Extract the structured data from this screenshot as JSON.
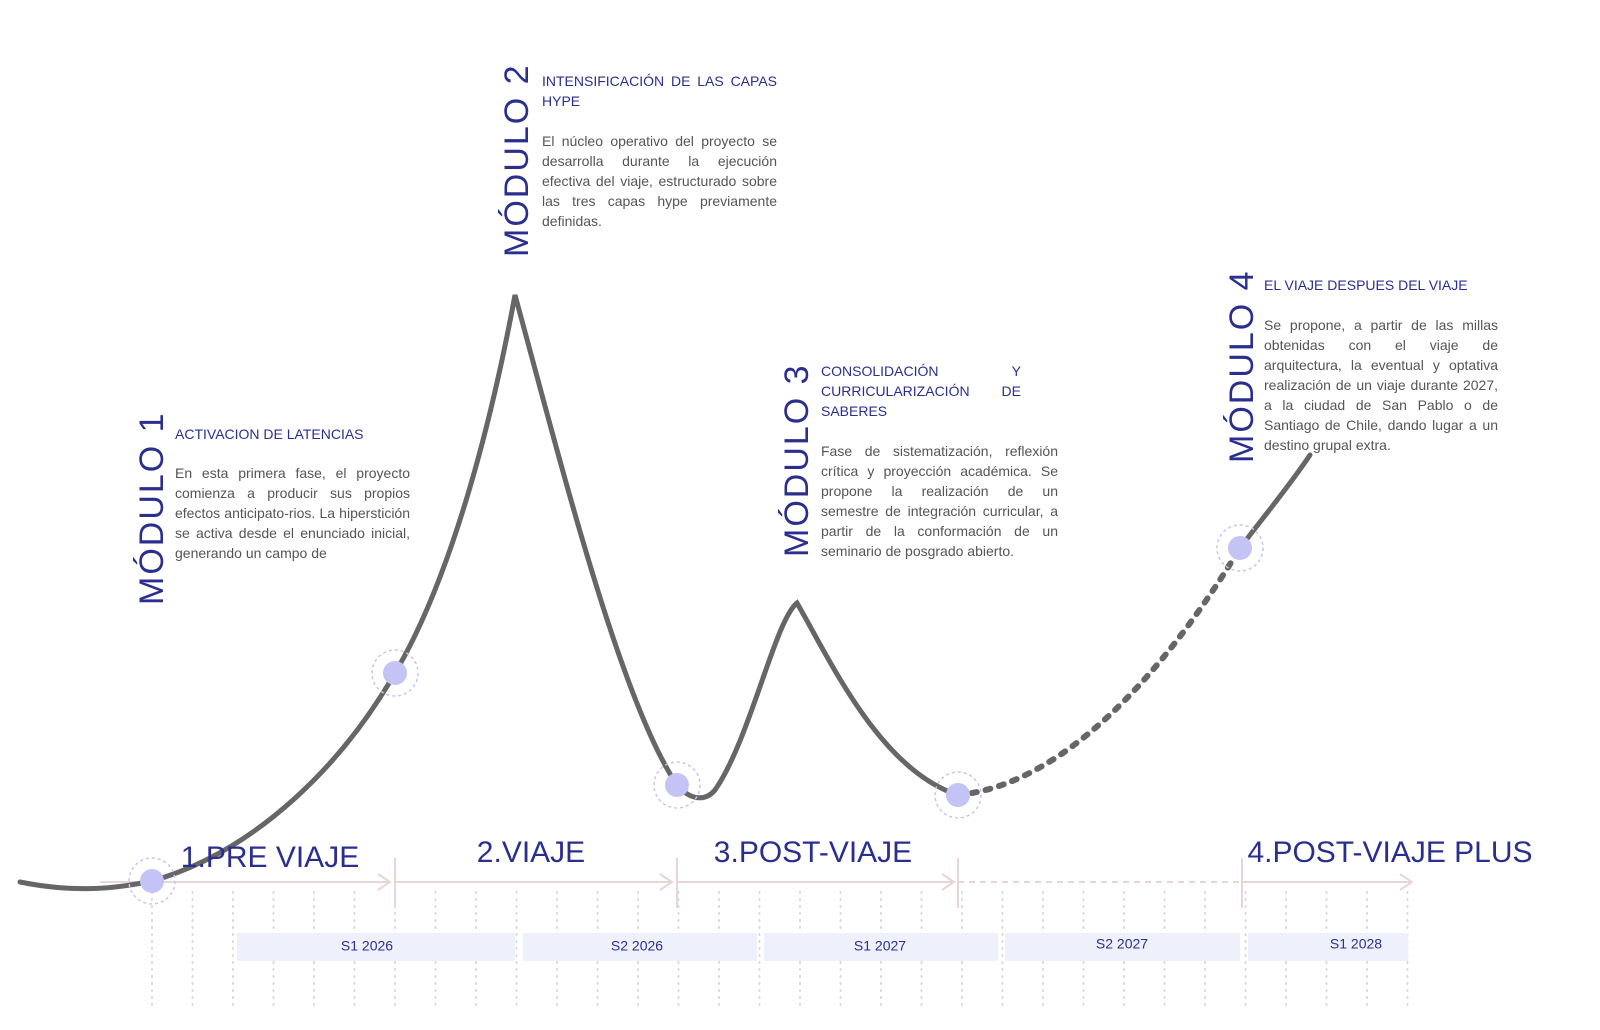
{
  "modules": [
    {
      "label": "MÓDULO 1",
      "title": "ACTIVACION DE LATENCIAS",
      "body": "En esta primera fase, el proyecto comienza a producir sus propios efectos anticipato-rios. La hiperstición se activa desde el enunciado inicial, generando un campo de"
    },
    {
      "label": "MÓDULO 2",
      "title": "INTENSIFICACIÓN DE LAS CAPAS HYPE",
      "body": "El núcleo operativo del proyecto se desarrolla durante la ejecución efectiva del viaje, estructurado sobre las tres capas hype previamente definidas."
    },
    {
      "label": "MÓDULO 3",
      "title": "CONSOLIDACIÓN Y CURRICULARIZACIÓN DE SABERES",
      "body": "Fase de sistematización, reflexión crítica y proyección académica. Se propone la realización de un semestre de integración curricular, a partir de la conformación de un seminario de posgrado abierto."
    },
    {
      "label": "MÓDULO 4",
      "title": "EL VIAJE DESPUES DEL VIAJE",
      "body": "Se propone, a partir de las millas obtenidas con el viaje de arquitectura, la eventual y optativa realización de un viaje durante 2027, a la ciudad de San Pablo o de Santiago de Chile, dando lugar a un destino grupal extra."
    }
  ],
  "phases": [
    "1.PRE VIAJE",
    "2.VIAJE",
    "3.POST-VIAJE",
    "4.POST-VIAJE PLUS"
  ],
  "semesters": [
    "S1 2026",
    "S2 2026",
    "S1 2027",
    "S2 2027",
    "S1 2028"
  ]
}
